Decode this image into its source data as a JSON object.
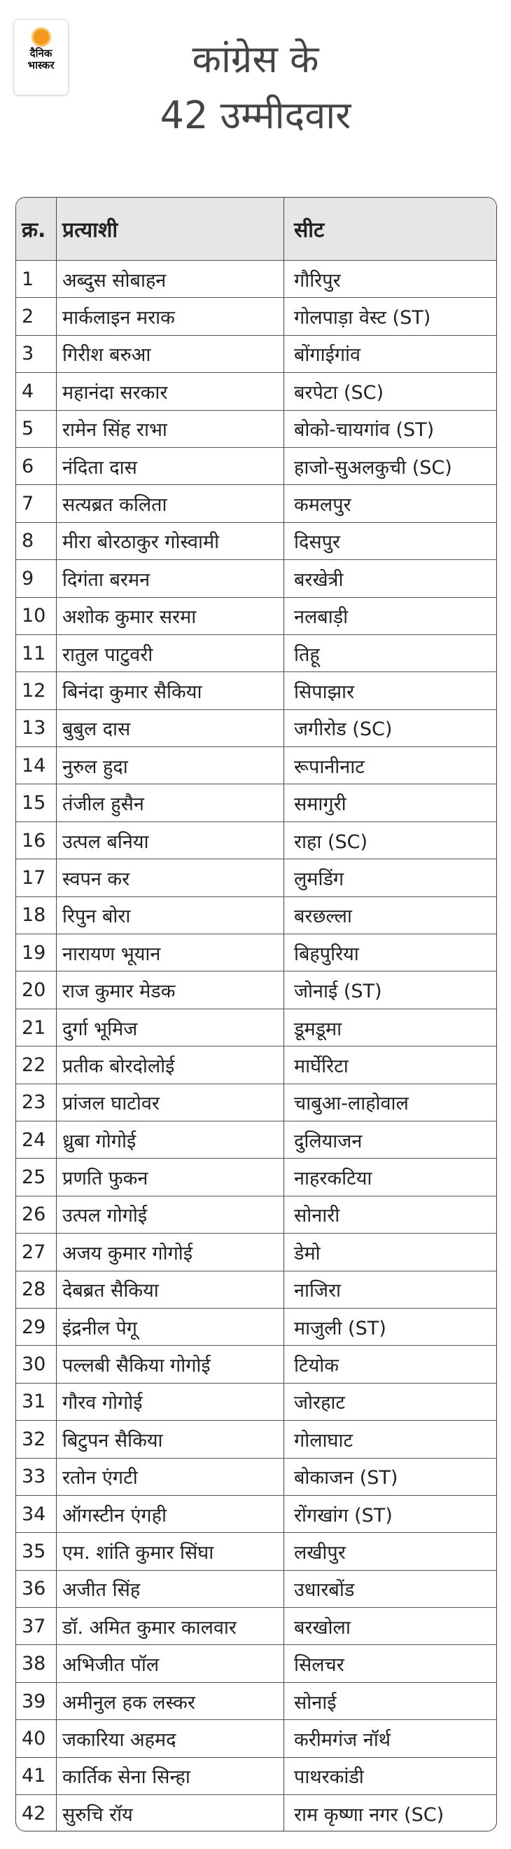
{
  "logo": {
    "line1": "दैनिक",
    "line2": "भास्कर"
  },
  "title": {
    "line1": "कांग्रेस के",
    "line2": "42 उम्मीदवार"
  },
  "accent_color": "#f39a1e",
  "table": {
    "headers": [
      "क्र.",
      "प्रत्याशी",
      "सीट"
    ],
    "rows": [
      [
        "1",
        "अब्दुस सोबाहन",
        "गौरिपुर"
      ],
      [
        "2",
        "मार्कलाइन मराक",
        "गोलपाड़ा वेस्ट (ST)"
      ],
      [
        "3",
        "गिरीश बरुआ",
        "बोंगाईगांव"
      ],
      [
        "4",
        "महानंदा सरकार",
        "बरपेटा (SC)"
      ],
      [
        "5",
        "रामेन सिंह राभा",
        "बोको-चायगांव (ST)"
      ],
      [
        "6",
        "नंदिता दास",
        "हाजो-सुअलकुची (SC)"
      ],
      [
        "7",
        "सत्यब्रत कलिता",
        "कमलपुर"
      ],
      [
        "8",
        "मीरा बोरठाकुर गोस्वामी",
        "दिसपुर"
      ],
      [
        "9",
        "दिगंता बरमन",
        "बरखेत्री"
      ],
      [
        "10",
        "अशोक कुमार सरमा",
        "नलबाड़ी"
      ],
      [
        "11",
        "रातुल पाटुवरी",
        "तिहू"
      ],
      [
        "12",
        "बिनंदा कुमार सैकिया",
        "सिपाझार"
      ],
      [
        "13",
        "बुबुल दास",
        "जगीरोड (SC)"
      ],
      [
        "14",
        "नुरुल हुदा",
        "रूपानीनाट"
      ],
      [
        "15",
        "तंजील हुसैन",
        "समागुरी"
      ],
      [
        "16",
        "उत्पल बनिया",
        "राहा (SC)"
      ],
      [
        "17",
        "स्वपन कर",
        "लुमडिंग"
      ],
      [
        "18",
        "रिपुन बोरा",
        "बरछल्ला"
      ],
      [
        "19",
        "नारायण भूयान",
        "बिहपुरिया"
      ],
      [
        "20",
        "राज कुमार मेडक",
        "जोनाई (ST)"
      ],
      [
        "21",
        "दुर्गा भूमिज",
        "डूमडूमा"
      ],
      [
        "22",
        "प्रतीक बोरदोलोई",
        "मार्घेरिटा"
      ],
      [
        "23",
        "प्रांजल घाटोवर",
        "चाबुआ-लाहोवाल"
      ],
      [
        "24",
        "ध्रुबा गोगोई",
        "दुलियाजन"
      ],
      [
        "25",
        "प्रणति फुकन",
        "नाहरकटिया"
      ],
      [
        "26",
        "उत्पल गोगोई",
        "सोनारी"
      ],
      [
        "27",
        "अजय कुमार गोगोई",
        "डेमो"
      ],
      [
        "28",
        "देबब्रत सैकिया",
        "नाजिरा"
      ],
      [
        "29",
        "इंद्रनील पेगू",
        "माजुली (ST)"
      ],
      [
        "30",
        "पल्लबी सैकिया गोगोई",
        "टियोक"
      ],
      [
        "31",
        "गौरव गोगोई",
        "जोरहाट"
      ],
      [
        "32",
        "बिटुपन सैकिया",
        "गोलाघाट"
      ],
      [
        "33",
        "रतोन एंगटी",
        "बोकाजन (ST)"
      ],
      [
        "34",
        "ऑगस्टीन एंगही",
        "रोंगखांग (ST)"
      ],
      [
        "35",
        "एम. शांति कुमार सिंघा",
        "लखीपुर"
      ],
      [
        "36",
        "अजीत सिंह",
        "उधारबोंड"
      ],
      [
        "37",
        "डॉ. अमित कुमार कालवार",
        "बरखोला"
      ],
      [
        "38",
        "अभिजीत पॉल",
        "सिलचर"
      ],
      [
        "39",
        "अमीनुल हक लस्कर",
        "सोनाई"
      ],
      [
        "40",
        "जकारिया अहमद",
        "करीमगंज नॉर्थ"
      ],
      [
        "41",
        "कार्तिक सेना सिन्हा",
        "पाथरकांडी"
      ],
      [
        "42",
        "सुरुचि रॉय",
        "राम कृष्णा नगर (SC)"
      ]
    ]
  }
}
